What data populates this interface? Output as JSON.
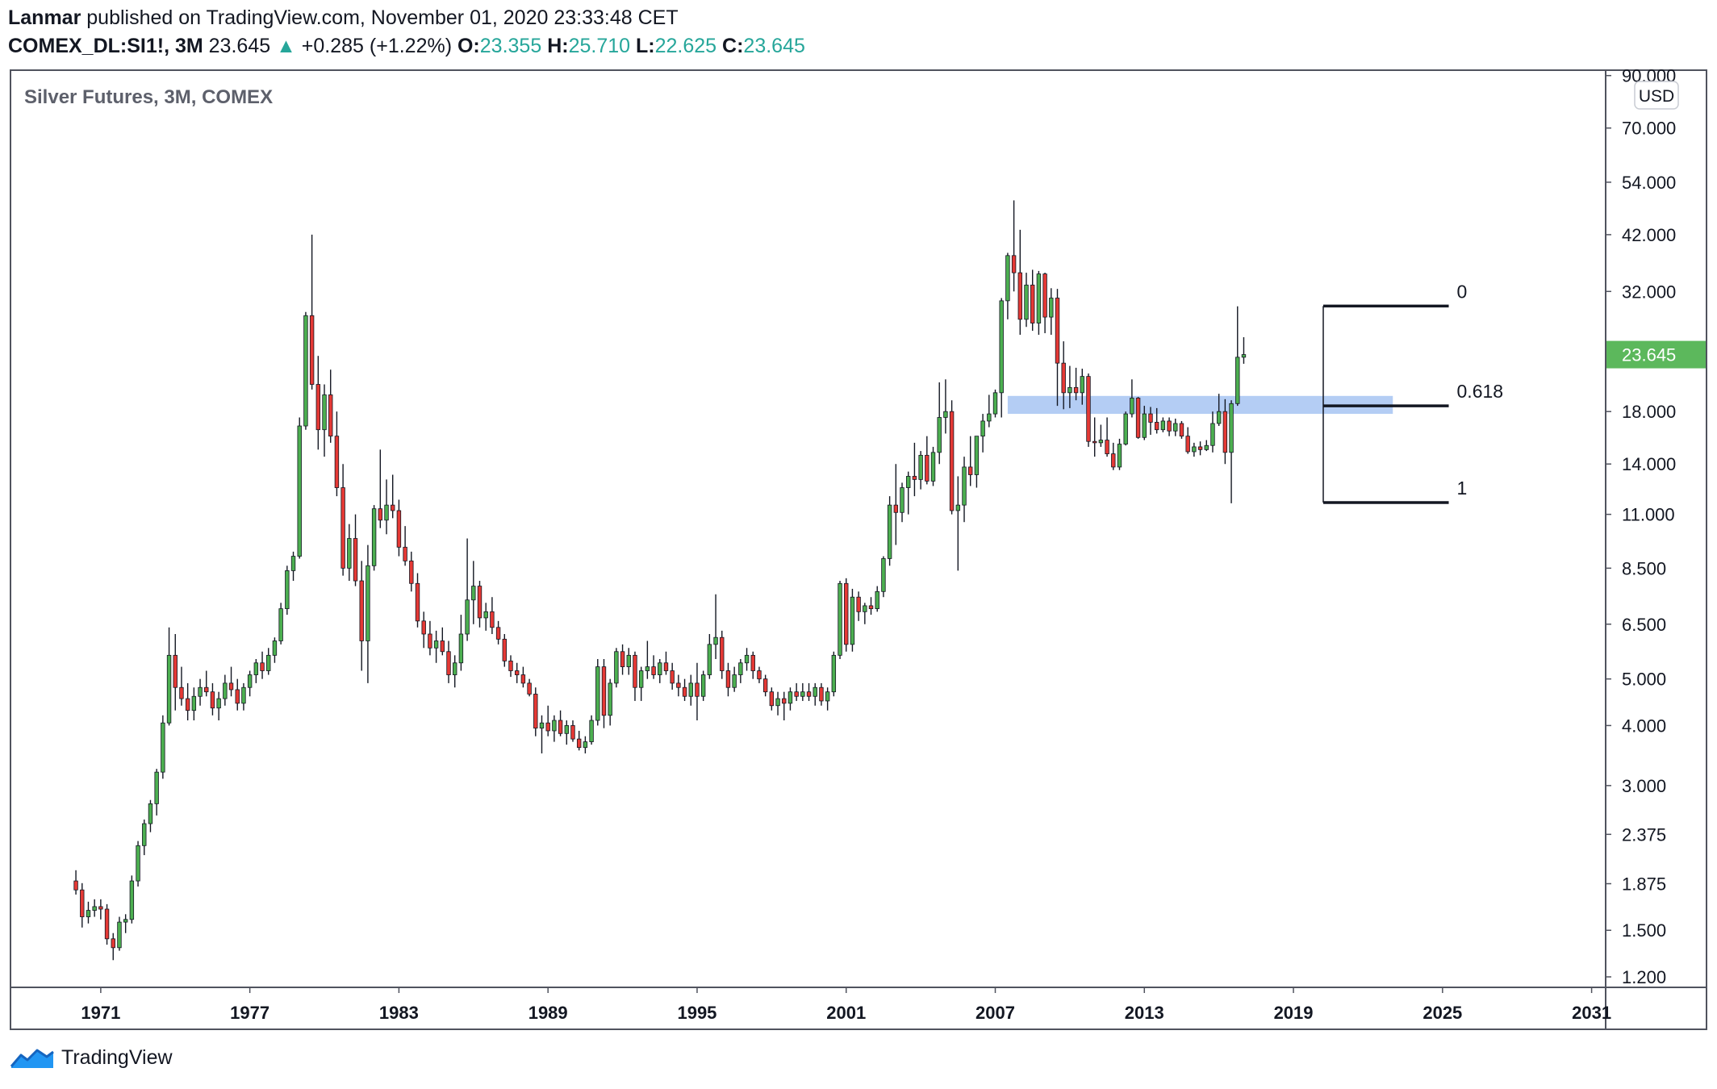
{
  "header": {
    "author": "Lanmar",
    "published_text": "published on TradingView.com, November 01, 2020 23:33:48 CET",
    "symbol": "COMEX_DL:SI1!, 3M",
    "last": "23.645",
    "change": "+0.285 (+1.22%)",
    "open_label": "O:",
    "open": "23.355",
    "high_label": "H:",
    "high": "25.710",
    "low_label": "L:",
    "low": "22.625",
    "close_label": "C:",
    "close": "23.645",
    "up_arrow": "▲"
  },
  "footer": {
    "brand": "TradingView",
    "logo_icon": "tradingview-logo-icon"
  },
  "colors": {
    "up": "#4caf50",
    "down": "#e53935",
    "accent": "#26a69a",
    "price_tag": "#5cb85c",
    "zone": "#a7c4f2"
  },
  "chart_data": {
    "type": "candlestick",
    "title": "Silver Futures, 3M, COMEX",
    "currency": "USD",
    "log_scale": true,
    "ylim": [
      1.15,
      92
    ],
    "xlim": [
      1967.4,
      2031.5
    ],
    "x_ticks": [
      1971,
      1977,
      1983,
      1989,
      1995,
      2001,
      2007,
      2013,
      2019,
      2025,
      2031
    ],
    "x_tick_labels": [
      "1971",
      "1977",
      "1983",
      "1989",
      "1995",
      "2001",
      "2007",
      "2013",
      "2019",
      "2025",
      "2031"
    ],
    "y_ticks": [
      90,
      70,
      54,
      42,
      32,
      18,
      14,
      11,
      8.5,
      6.5,
      5,
      4,
      3,
      2.375,
      1.875,
      1.5,
      1.2
    ],
    "y_tick_labels": [
      "90.000",
      "70.000",
      "54.000",
      "42.000",
      "32.000",
      "18.000",
      "14.000",
      "11.000",
      "8.500",
      "6.500",
      "5.000",
      "4.000",
      "3.000",
      "2.375",
      "1.875",
      "1.500",
      "1.200"
    ],
    "last_price": 23.645,
    "last_price_label": "23.645",
    "candle_spacing_years": 0.25,
    "candles": [
      [
        1.9,
        2.0,
        1.78,
        1.82
      ],
      [
        1.82,
        1.88,
        1.52,
        1.6
      ],
      [
        1.6,
        1.72,
        1.55,
        1.65
      ],
      [
        1.65,
        1.74,
        1.6,
        1.68
      ],
      [
        1.68,
        1.74,
        1.58,
        1.66
      ],
      [
        1.66,
        1.7,
        1.4,
        1.44
      ],
      [
        1.44,
        1.48,
        1.3,
        1.38
      ],
      [
        1.38,
        1.6,
        1.36,
        1.56
      ],
      [
        1.56,
        1.62,
        1.48,
        1.58
      ],
      [
        1.58,
        1.95,
        1.55,
        1.9
      ],
      [
        1.9,
        2.3,
        1.85,
        2.25
      ],
      [
        2.25,
        2.55,
        2.15,
        2.5
      ],
      [
        2.5,
        2.8,
        2.4,
        2.75
      ],
      [
        2.75,
        3.25,
        2.6,
        3.2
      ],
      [
        3.2,
        4.2,
        3.1,
        4.05
      ],
      [
        4.05,
        6.4,
        4.0,
        5.6
      ],
      [
        5.6,
        6.2,
        4.3,
        4.8
      ],
      [
        4.8,
        5.3,
        4.4,
        4.55
      ],
      [
        4.55,
        4.9,
        4.1,
        4.3
      ],
      [
        4.3,
        4.8,
        4.1,
        4.6
      ],
      [
        4.6,
        5.0,
        4.4,
        4.8
      ],
      [
        4.8,
        5.2,
        4.6,
        4.7
      ],
      [
        4.7,
        4.9,
        4.2,
        4.35
      ],
      [
        4.35,
        4.7,
        4.1,
        4.55
      ],
      [
        4.55,
        5.1,
        4.4,
        4.9
      ],
      [
        4.9,
        5.3,
        4.6,
        4.75
      ],
      [
        4.75,
        5.0,
        4.3,
        4.45
      ],
      [
        4.45,
        4.9,
        4.3,
        4.8
      ],
      [
        4.8,
        5.2,
        4.6,
        5.1
      ],
      [
        5.1,
        5.5,
        4.9,
        5.4
      ],
      [
        5.4,
        5.7,
        5.0,
        5.2
      ],
      [
        5.2,
        5.8,
        5.1,
        5.6
      ],
      [
        5.6,
        6.1,
        5.4,
        6.0
      ],
      [
        6.0,
        7.2,
        5.9,
        7.0
      ],
      [
        7.0,
        8.6,
        6.8,
        8.4
      ],
      [
        8.4,
        9.2,
        8.0,
        9.0
      ],
      [
        9.0,
        17.5,
        8.9,
        16.8
      ],
      [
        16.8,
        29.0,
        16.5,
        28.5
      ],
      [
        28.5,
        42.0,
        20.0,
        20.5
      ],
      [
        20.5,
        23.5,
        15.0,
        16.5
      ],
      [
        16.5,
        20.5,
        14.5,
        19.5
      ],
      [
        19.5,
        22.0,
        15.5,
        16.0
      ],
      [
        16.0,
        18.0,
        12.0,
        12.5
      ],
      [
        12.5,
        14.0,
        8.2,
        8.5
      ],
      [
        8.5,
        10.5,
        8.0,
        9.8
      ],
      [
        9.8,
        11.0,
        7.8,
        8.0
      ],
      [
        8.0,
        8.8,
        5.2,
        6.0
      ],
      [
        6.0,
        9.5,
        4.9,
        8.6
      ],
      [
        8.6,
        11.5,
        8.4,
        11.3
      ],
      [
        11.3,
        15.0,
        10.3,
        10.7
      ],
      [
        10.7,
        13.0,
        10.0,
        11.5
      ],
      [
        11.5,
        13.3,
        10.8,
        11.2
      ],
      [
        11.2,
        11.8,
        9.0,
        9.4
      ],
      [
        9.4,
        10.4,
        8.6,
        8.8
      ],
      [
        8.8,
        9.2,
        7.6,
        7.9
      ],
      [
        7.9,
        8.3,
        6.4,
        6.6
      ],
      [
        6.6,
        6.9,
        5.8,
        6.2
      ],
      [
        6.2,
        6.6,
        5.6,
        5.8
      ],
      [
        5.8,
        6.3,
        5.4,
        6.0
      ],
      [
        6.0,
        6.4,
        5.6,
        5.7
      ],
      [
        5.7,
        6.0,
        4.9,
        5.1
      ],
      [
        5.1,
        5.6,
        4.8,
        5.4
      ],
      [
        5.4,
        6.8,
        5.2,
        6.2
      ],
      [
        6.2,
        9.8,
        6.0,
        7.3
      ],
      [
        7.3,
        8.8,
        6.5,
        7.8
      ],
      [
        7.8,
        8.0,
        6.4,
        6.7
      ],
      [
        6.7,
        7.2,
        6.3,
        6.9
      ],
      [
        6.9,
        7.4,
        6.2,
        6.4
      ],
      [
        6.4,
        6.6,
        5.9,
        6.05
      ],
      [
        6.05,
        6.2,
        5.3,
        5.45
      ],
      [
        5.45,
        5.6,
        5.05,
        5.2
      ],
      [
        5.2,
        5.4,
        4.9,
        5.1
      ],
      [
        5.1,
        5.3,
        4.8,
        4.9
      ],
      [
        4.9,
        5.0,
        4.6,
        4.65
      ],
      [
        4.65,
        4.8,
        3.8,
        3.95
      ],
      [
        3.95,
        4.2,
        3.5,
        4.05
      ],
      [
        4.05,
        4.4,
        3.8,
        3.9
      ],
      [
        3.9,
        4.2,
        3.7,
        4.1
      ],
      [
        4.1,
        4.3,
        3.8,
        3.85
      ],
      [
        3.85,
        4.1,
        3.65,
        4.0
      ],
      [
        4.0,
        4.1,
        3.7,
        3.75
      ],
      [
        3.75,
        3.9,
        3.55,
        3.6
      ],
      [
        3.6,
        3.8,
        3.5,
        3.7
      ],
      [
        3.7,
        4.2,
        3.65,
        4.1
      ],
      [
        4.1,
        5.5,
        4.0,
        5.3
      ],
      [
        5.3,
        5.5,
        3.95,
        4.2
      ],
      [
        4.2,
        5.0,
        4.0,
        4.9
      ],
      [
        4.9,
        5.8,
        4.8,
        5.7
      ],
      [
        5.7,
        5.9,
        5.1,
        5.3
      ],
      [
        5.3,
        5.8,
        5.1,
        5.6
      ],
      [
        5.6,
        5.7,
        4.5,
        4.8
      ],
      [
        4.8,
        5.3,
        4.5,
        5.2
      ],
      [
        5.2,
        6.0,
        5.0,
        5.3
      ],
      [
        5.3,
        5.6,
        5.0,
        5.1
      ],
      [
        5.1,
        5.5,
        4.9,
        5.4
      ],
      [
        5.4,
        5.7,
        5.1,
        5.2
      ],
      [
        5.2,
        5.4,
        4.75,
        4.9
      ],
      [
        4.9,
        5.1,
        4.6,
        4.8
      ],
      [
        4.8,
        5.0,
        4.5,
        4.6
      ],
      [
        4.6,
        5.1,
        4.4,
        4.9
      ],
      [
        4.9,
        5.4,
        4.1,
        4.6
      ],
      [
        4.6,
        5.2,
        4.5,
        5.1
      ],
      [
        5.1,
        6.2,
        5.0,
        5.9
      ],
      [
        5.9,
        7.5,
        5.5,
        6.1
      ],
      [
        6.1,
        6.3,
        5.0,
        5.2
      ],
      [
        5.2,
        5.4,
        4.6,
        4.8
      ],
      [
        4.8,
        5.3,
        4.7,
        5.1
      ],
      [
        5.1,
        5.5,
        4.9,
        5.4
      ],
      [
        5.4,
        5.8,
        5.2,
        5.6
      ],
      [
        5.6,
        5.7,
        5.0,
        5.2
      ],
      [
        5.2,
        5.3,
        4.9,
        5.0
      ],
      [
        5.0,
        5.1,
        4.6,
        4.7
      ],
      [
        4.7,
        4.8,
        4.3,
        4.4
      ],
      [
        4.4,
        4.7,
        4.2,
        4.55
      ],
      [
        4.55,
        4.7,
        4.1,
        4.45
      ],
      [
        4.45,
        4.8,
        4.3,
        4.7
      ],
      [
        4.7,
        4.9,
        4.5,
        4.6
      ],
      [
        4.6,
        4.9,
        4.5,
        4.7
      ],
      [
        4.7,
        4.9,
        4.5,
        4.6
      ],
      [
        4.6,
        4.9,
        4.4,
        4.8
      ],
      [
        4.8,
        4.9,
        4.4,
        4.5
      ],
      [
        4.5,
        4.8,
        4.3,
        4.7
      ],
      [
        4.7,
        5.7,
        4.6,
        5.6
      ],
      [
        5.6,
        8.0,
        5.5,
        7.9
      ],
      [
        7.9,
        8.1,
        5.7,
        5.9
      ],
      [
        5.9,
        7.7,
        5.7,
        7.4
      ],
      [
        7.4,
        7.6,
        6.6,
        6.9
      ],
      [
        6.9,
        7.2,
        6.5,
        7.1
      ],
      [
        7.1,
        7.4,
        6.8,
        7.0
      ],
      [
        7.0,
        7.8,
        6.9,
        7.6
      ],
      [
        7.6,
        9.0,
        7.4,
        8.9
      ],
      [
        8.9,
        12.0,
        8.6,
        11.5
      ],
      [
        11.5,
        14.0,
        9.5,
        11.1
      ],
      [
        11.1,
        12.8,
        10.6,
        12.5
      ],
      [
        12.5,
        13.5,
        11.0,
        13.2
      ],
      [
        13.2,
        15.5,
        12.0,
        13.0
      ],
      [
        13.0,
        14.9,
        12.4,
        14.6
      ],
      [
        14.6,
        16.0,
        12.7,
        12.9
      ],
      [
        12.9,
        15.2,
        12.6,
        14.8
      ],
      [
        14.8,
        20.7,
        14.0,
        17.5
      ],
      [
        17.5,
        21.0,
        16.2,
        18.0
      ],
      [
        18.0,
        19.0,
        11.0,
        11.2
      ],
      [
        11.2,
        13.2,
        8.4,
        11.5
      ],
      [
        11.5,
        14.5,
        10.6,
        13.8
      ],
      [
        13.8,
        16.0,
        12.6,
        13.3
      ],
      [
        13.3,
        16.0,
        12.5,
        16.0
      ],
      [
        16.0,
        17.8,
        14.8,
        17.2
      ],
      [
        17.2,
        19.5,
        16.7,
        17.8
      ],
      [
        17.8,
        20.0,
        17.5,
        19.7
      ],
      [
        19.7,
        31.0,
        17.5,
        30.6
      ],
      [
        30.6,
        38.5,
        28.0,
        38.0
      ],
      [
        38.0,
        49.5,
        32.0,
        35.0
      ],
      [
        35.0,
        43.0,
        26.0,
        28.0
      ],
      [
        28.0,
        35.0,
        27.0,
        33.0
      ],
      [
        33.0,
        35.5,
        26.5,
        27.5
      ],
      [
        27.5,
        35.3,
        26.0,
        34.8
      ],
      [
        34.8,
        35.0,
        26.2,
        28.3
      ],
      [
        28.3,
        32.5,
        26.0,
        31.0
      ],
      [
        31.0,
        32.4,
        18.5,
        22.7
      ],
      [
        22.7,
        25.2,
        18.2,
        19.7
      ],
      [
        19.7,
        22.4,
        18.3,
        20.2
      ],
      [
        20.2,
        22.2,
        19.0,
        19.7
      ],
      [
        19.7,
        22.1,
        18.6,
        21.3
      ],
      [
        21.3,
        21.6,
        15.2,
        15.6
      ],
      [
        15.6,
        17.5,
        14.5,
        15.5
      ],
      [
        15.5,
        16.9,
        15.2,
        15.7
      ],
      [
        15.7,
        17.5,
        14.5,
        14.7
      ],
      [
        14.7,
        15.5,
        13.6,
        13.8
      ],
      [
        13.8,
        15.8,
        13.6,
        15.4
      ],
      [
        15.4,
        18.0,
        15.3,
        17.8
      ],
      [
        17.8,
        21.0,
        17.5,
        19.2
      ],
      [
        19.2,
        19.3,
        15.8,
        15.9
      ],
      [
        15.9,
        18.5,
        15.7,
        17.8
      ],
      [
        17.8,
        18.4,
        16.1,
        17.1
      ],
      [
        17.1,
        18.3,
        16.2,
        16.5
      ],
      [
        16.5,
        17.5,
        16.3,
        17.2
      ],
      [
        17.2,
        17.5,
        16.0,
        16.4
      ],
      [
        16.4,
        17.4,
        16.0,
        17.0
      ],
      [
        17.0,
        17.2,
        15.8,
        16.0
      ],
      [
        16.0,
        16.7,
        14.7,
        14.85
      ],
      [
        14.85,
        15.5,
        14.5,
        15.2
      ],
      [
        15.2,
        15.6,
        14.6,
        15.0
      ],
      [
        15.0,
        15.7,
        14.9,
        15.3
      ],
      [
        15.3,
        18.0,
        14.8,
        17.0
      ],
      [
        17.0,
        19.6,
        16.8,
        18.0
      ],
      [
        18.0,
        19.1,
        14.0,
        14.8
      ],
      [
        14.8,
        19.0,
        11.6,
        18.7
      ],
      [
        18.7,
        29.8,
        18.5,
        23.35
      ],
      [
        23.35,
        25.7,
        22.63,
        23.65
      ]
    ],
    "fib_levels": [
      {
        "label": "0",
        "price": 29.84
      },
      {
        "label": "0.618",
        "price": 18.5
      },
      {
        "label": "1",
        "price": 11.64
      }
    ],
    "fib_start_year": 2020.2,
    "fib_end_year": 2025.25,
    "zone": {
      "low": 17.8,
      "high": 19.4,
      "start_year": 2007.5,
      "end_year": 2023.0
    }
  }
}
